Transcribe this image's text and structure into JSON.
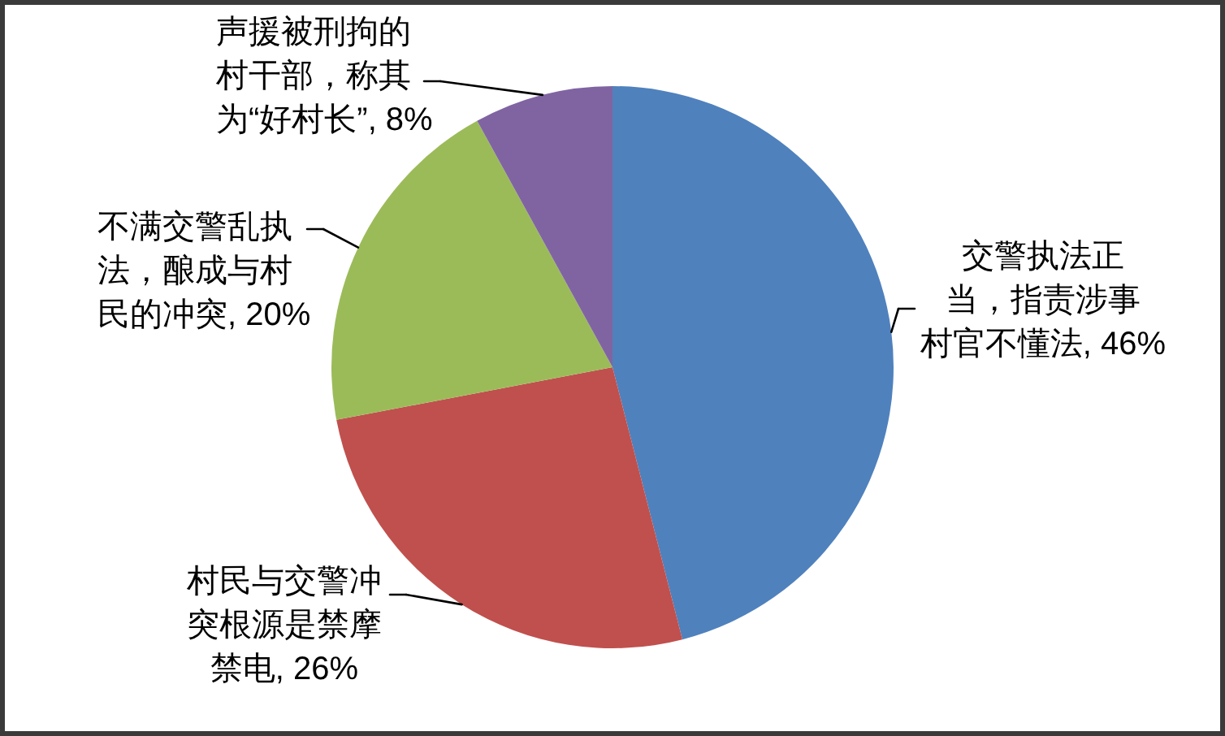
{
  "chart_data": {
    "type": "pie",
    "categories": [
      "交警执法正当，指责涉事村官不懂法",
      "村民与交警冲突根源是禁摩禁电",
      "不满交警乱执法，酿成与村民的冲突",
      "声援被刑拘的村干部，称其为“好村长”"
    ],
    "values": [
      46,
      26,
      20,
      8
    ],
    "colors": [
      "#4f81bd",
      "#c0504d",
      "#9bbb59",
      "#8064a2"
    ],
    "value_labels": [
      "46%",
      "26%",
      "20%",
      "8%"
    ]
  }
}
